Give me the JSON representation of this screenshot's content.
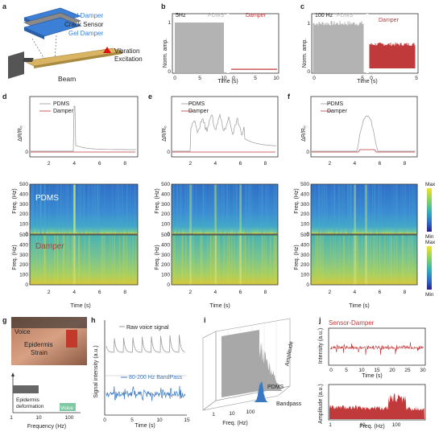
{
  "panels": {
    "a": {
      "letter": "a",
      "layer_top": "Gel Damper",
      "layer_mid": "Crack Sensor",
      "layer_bot": "Gel Damper",
      "beam": "Beam",
      "excitation_l1": "Vibration",
      "excitation_l2": "Excitation"
    },
    "b": {
      "letter": "b",
      "freq": "5Hz",
      "pdms": "PDMS",
      "damper": "Damper",
      "ylabel": "Norm. amp.",
      "xlabel": "Time (s)"
    },
    "c": {
      "letter": "c",
      "freq": "100 Hz",
      "pdms": "PDMS",
      "damper": "Damper",
      "ylabel": "Norm. amp.",
      "xlabel": "Time (s)"
    },
    "d": {
      "letter": "d",
      "legend_pdms": "PDMS",
      "legend_damper": "Damper",
      "ylabel": "ΔR/R₀",
      "spec_ylabel": "Freq. (Hz)",
      "label_pdms": "PDMS",
      "label_damper": "Damper"
    },
    "e": {
      "letter": "e",
      "legend_pdms": "PDMS",
      "legend_damper": "Damper",
      "ylabel": "ΔR/R₀",
      "spec_ylabel": "Freq. (Hz)"
    },
    "f": {
      "letter": "f",
      "legend_pdms": "PDMS",
      "legend_damper": "Damper",
      "ylabel": "ΔR/R₀",
      "spec_ylabel": "Freq. (Hz)",
      "cb_max": "Max",
      "cb_min": "Min"
    },
    "time_xlabel": "Time (s)",
    "g": {
      "letter": "g",
      "voice": "Voice",
      "epidermis_strain": "Epidermis\nStrain",
      "deformation": "Epidermis\ndeformation",
      "voice_bar": "Voice",
      "xlabel": "Frequency (Hz)"
    },
    "h": {
      "letter": "h",
      "raw": "Raw voice signal",
      "band": "80-200 Hz BandPass",
      "ylabel": "Signal intensity (a.u.)",
      "xlabel": "Time (s)"
    },
    "i": {
      "letter": "i",
      "zlabel": "Amplitude",
      "pdms": "PDMS",
      "bandpass": "Bandpass",
      "xlabel": "Freq. (Hz)"
    },
    "j": {
      "letter": "j",
      "title": "Sensor-Damper",
      "ylabel_top": "Intensity (a.u.)",
      "xlabel_top": "Time (s)",
      "ylabel_bot": "Amplitude (a.u.)",
      "xlabel_bot": "Freq. (Hz)"
    }
  },
  "colors": {
    "pdms": "#b3b3b3",
    "damper": "#c0393b",
    "blue_layer": "#3b7fd6",
    "beam": "#d8b463",
    "signal_blue": "#3a78c2",
    "voice_green": "#7ec9a4"
  },
  "chart_data": [
    {
      "panel": "b",
      "type": "area",
      "x_range": [
        0,
        10
      ],
      "series": [
        {
          "name": "PDMS",
          "level": 1.0
        },
        {
          "name": "Damper",
          "level": 0.03
        }
      ],
      "xticks": [
        "0",
        "5",
        "10"
      ],
      "yticks": [
        "0",
        "1"
      ]
    },
    {
      "panel": "c",
      "type": "area",
      "x_range": [
        0,
        5
      ],
      "series": [
        {
          "name": "PDMS",
          "level": 1.0
        },
        {
          "name": "Damper",
          "level": 0.5
        }
      ],
      "xticks": [
        "0",
        "5"
      ],
      "yticks": [
        "0",
        "1"
      ]
    },
    {
      "panel": "d-f",
      "type": "heatmap",
      "x_ticks": [
        "2",
        "4",
        "6",
        "8"
      ],
      "y_ticks": [
        "0",
        "100",
        "200",
        "300",
        "400",
        "500"
      ],
      "y_range": [
        0,
        500
      ]
    },
    {
      "panel": "h",
      "type": "line",
      "x_ticks": [
        "0",
        "5",
        "10",
        "15"
      ],
      "series": [
        {
          "name": "Raw voice signal"
        },
        {
          "name": "80-200 Hz BandPass"
        }
      ]
    },
    {
      "panel": "i",
      "type": "area",
      "x_ticks": [
        "1",
        "10",
        "100"
      ]
    },
    {
      "panel": "j",
      "type": "line",
      "top_x_ticks": [
        "0",
        "5",
        "10",
        "15",
        "20",
        "25",
        "30"
      ],
      "bot_x_ticks": [
        "1",
        "10",
        "100"
      ]
    }
  ]
}
